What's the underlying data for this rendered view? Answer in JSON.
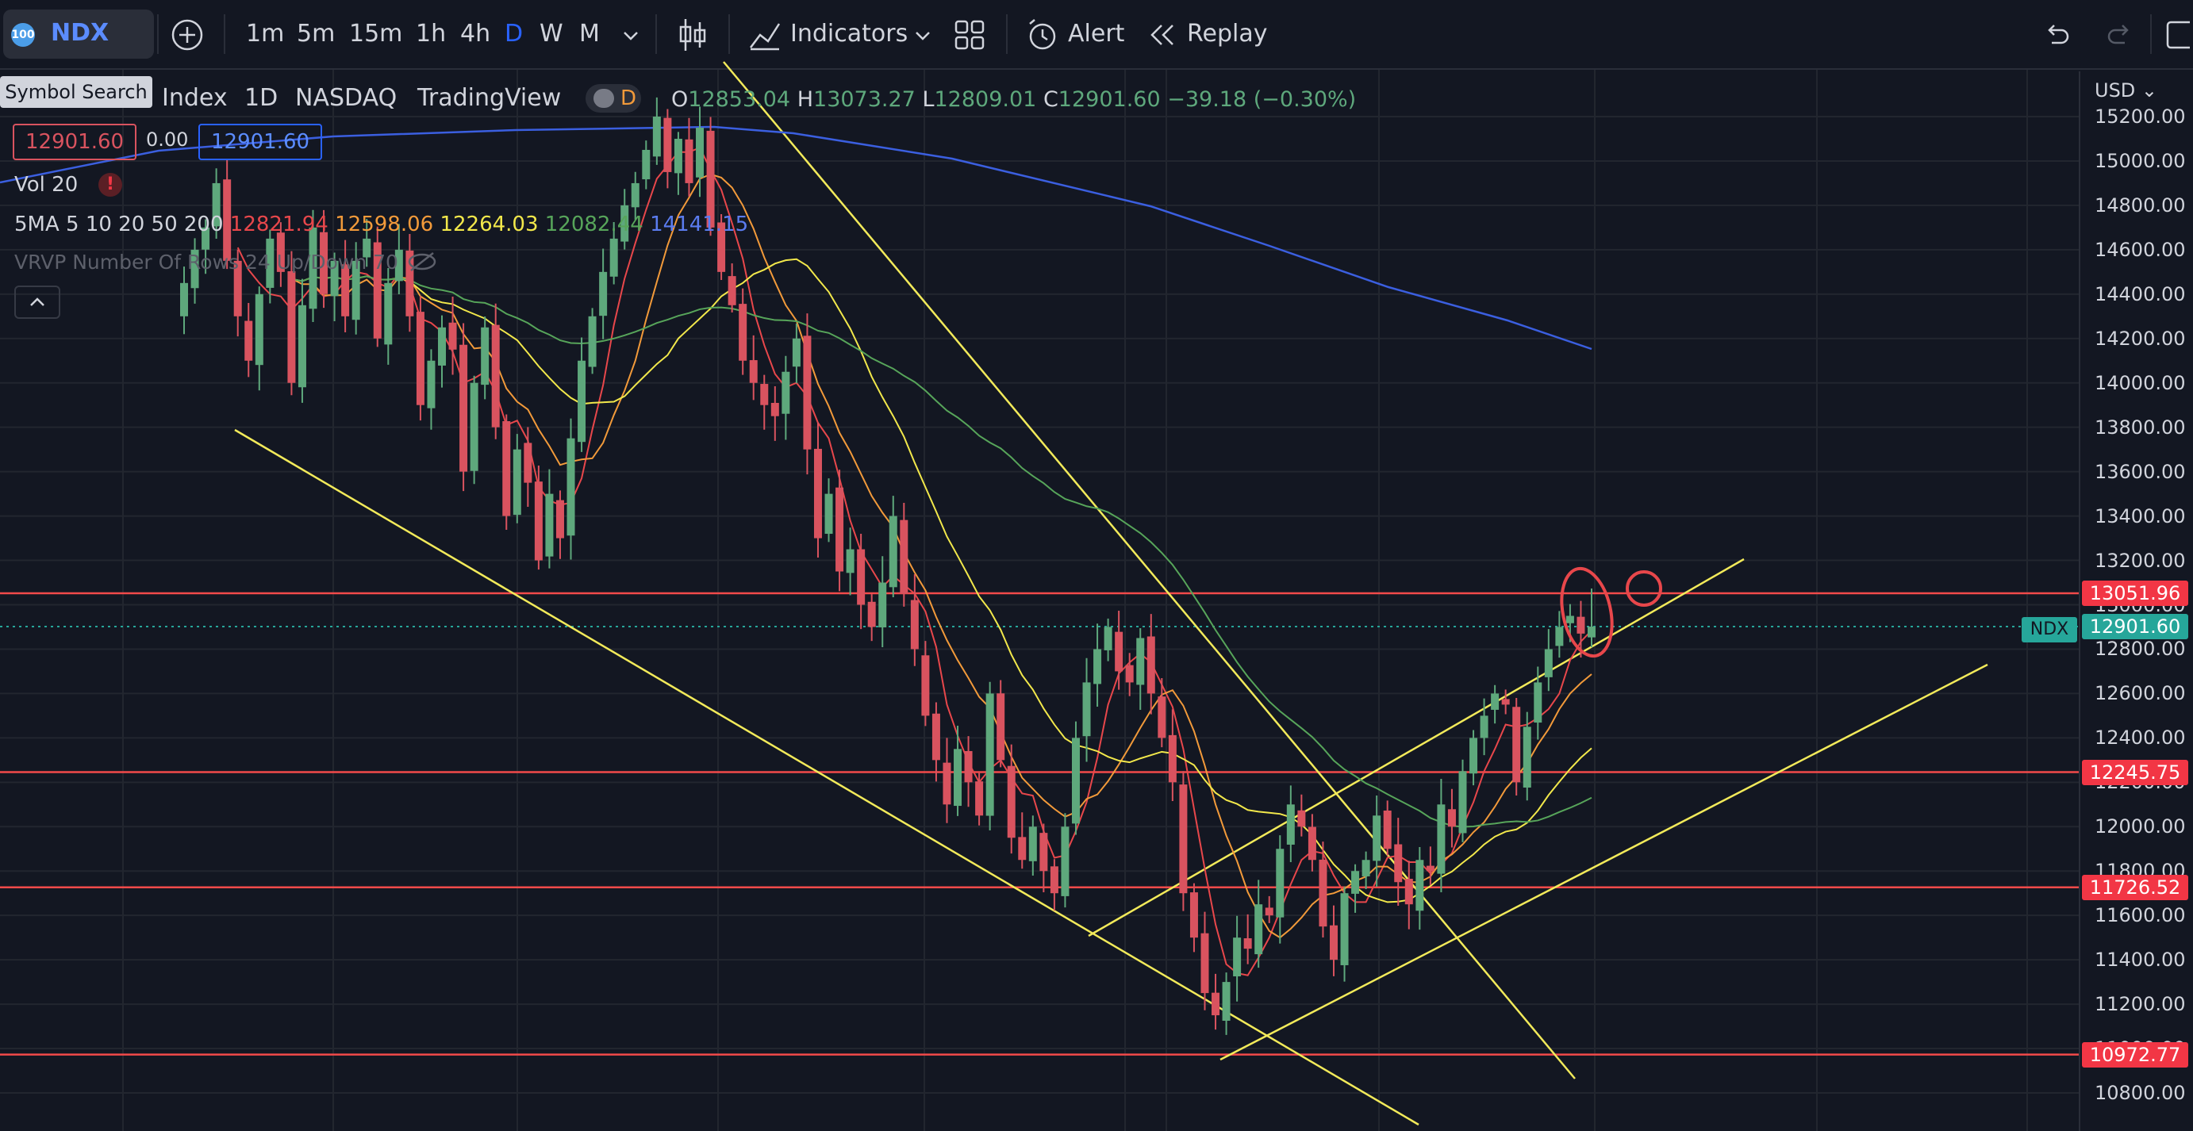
{
  "toolbar": {
    "symbol": "NDX",
    "symbol_logo": "100",
    "timeframes": [
      "1m",
      "5m",
      "15m",
      "1h",
      "4h",
      "D",
      "W",
      "M"
    ],
    "active_timeframe": "D",
    "indicators_label": "Indicators",
    "alert_label": "Alert",
    "replay_label": "Replay",
    "tooltip": "Symbol Search"
  },
  "legend": {
    "title_parts": [
      "Index",
      "1D",
      "NASDAQ",
      "TradingView"
    ],
    "badge": "D",
    "o_label": "O",
    "o": "12853.04",
    "h_label": "H",
    "h": "13073.27",
    "l_label": "L",
    "l": "12809.01",
    "c_label": "C",
    "c": "12901.60",
    "change": "−39.18 (−0.30%)",
    "bid": "12901.60",
    "spread": "0.00",
    "ask": "12901.60",
    "vol": "Vol 20",
    "ma_label": "5MA 5 10 20 50 200",
    "ma_values": [
      "12821.94",
      "12598.06",
      "12264.03",
      "12082.44",
      "14141.15"
    ],
    "vrvp": "VRVP Number Of Rows 24 Up/Down 70"
  },
  "axis": {
    "currency": "USD",
    "ticks": [
      "15200.00",
      "15000.00",
      "14800.00",
      "14600.00",
      "14400.00",
      "14200.00",
      "14000.00",
      "13800.00",
      "13600.00",
      "13400.00",
      "13200.00",
      "13000.00",
      "12800.00",
      "12600.00",
      "12400.00",
      "12200.00",
      "12000.00",
      "11800.00",
      "11600.00",
      "11400.00",
      "11200.00",
      "11000.00",
      "10800.00"
    ],
    "last_label": "NDX",
    "last_price": "12901.60",
    "levels": [
      "13051.96",
      "12245.75",
      "11726.52",
      "10972.77"
    ]
  },
  "colors": {
    "up": "#5ea87c",
    "down": "#d9535f",
    "ma5": "#e8474b",
    "ma10": "#f29a3a",
    "ma20": "#f2e84b",
    "ma50": "#57a55a",
    "ma200": "#3b5fe0",
    "level": "#f24a4a",
    "trend": "#f2ea5a"
  },
  "chart_data": {
    "type": "candlestick",
    "timeframe": "1D",
    "ohlc_last": {
      "open": 12853.04,
      "high": 13073.27,
      "low": 12809.01,
      "close": 12901.6
    },
    "closes": [
      14450,
      14600,
      14700,
      14900,
      14550,
      14300,
      14100,
      14400,
      14650,
      14500,
      14000,
      14350,
      14700,
      14400,
      14550,
      14300,
      14550,
      14650,
      14200,
      14450,
      14600,
      14300,
      13900,
      14100,
      14250,
      14150,
      13600,
      14000,
      14250,
      13800,
      13400,
      13700,
      13550,
      13200,
      13500,
      13300,
      13750,
      14100,
      14300,
      14500,
      14650,
      14800,
      14900,
      15050,
      15200,
      14950,
      15100,
      14900,
      15150,
      14700,
      14500,
      14350,
      14100,
      14000,
      13900,
      13850,
      14050,
      14200,
      13700,
      13300,
      13500,
      13150,
      13250,
      13000,
      12900,
      13100,
      13400,
      13050,
      12800,
      12500,
      12300,
      12100,
      12350,
      12200,
      12050,
      12600,
      12300,
      11950,
      11850,
      12000,
      11800,
      11700,
      12000,
      12400,
      12650,
      12800,
      12900,
      12700,
      12650,
      12850,
      12600,
      12400,
      12200,
      11700,
      11500,
      11250,
      11150,
      11300,
      11500,
      11450,
      11650,
      11600,
      11900,
      12100,
      12000,
      11850,
      11550,
      11400,
      11700,
      11800,
      11850,
      12050,
      11900,
      11750,
      11650,
      11850,
      11800,
      12100,
      12000,
      12250,
      12400,
      12500,
      12600,
      12550,
      12200,
      12450,
      12650,
      12800,
      12900,
      12950,
      12870,
      12901.6
    ],
    "ma_periods": [
      5,
      10,
      20,
      50,
      200
    ],
    "ma_last_values": [
      12821.94,
      12598.06,
      12264.03,
      12082.44,
      14141.15
    ],
    "horizontal_levels": [
      13051.96,
      12245.75,
      11726.52,
      10972.77
    ],
    "ylim": [
      10700,
      15300
    ]
  }
}
